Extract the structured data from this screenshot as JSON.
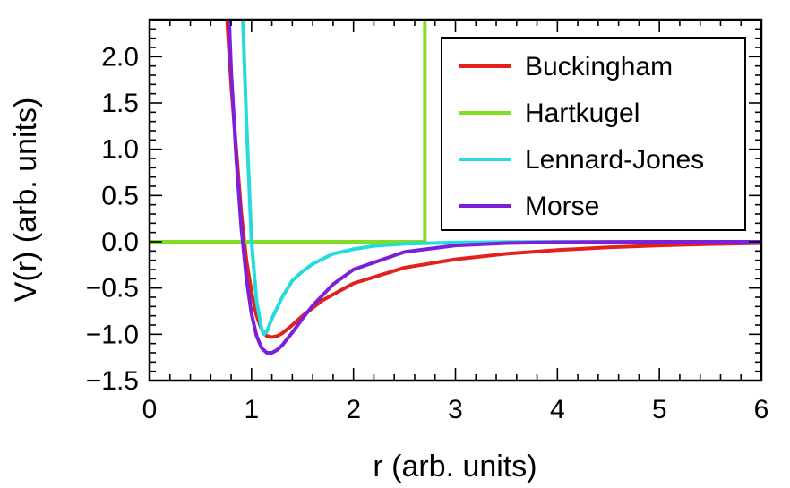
{
  "chart_data": {
    "type": "line",
    "title": "",
    "xlabel": "r (arb. units)",
    "ylabel": "V(r) (arb. units)",
    "xlim": [
      0,
      6
    ],
    "ylim": [
      -1.5,
      2.4
    ],
    "x_ticks": [
      "0",
      "1",
      "2",
      "3",
      "4",
      "5",
      "6"
    ],
    "x_tick_values": [
      0,
      1,
      2,
      3,
      4,
      5,
      6
    ],
    "y_ticks": [
      "−1.5",
      "−1.0",
      "−0.5",
      "0.0",
      "0.5",
      "1.0",
      "1.5",
      "2.0"
    ],
    "y_tick_values": [
      -1.5,
      -1.0,
      -0.5,
      0.0,
      0.5,
      1.0,
      1.5,
      2.0
    ],
    "grid": false,
    "legend_position": "top-right",
    "series": [
      {
        "name": "Buckingham",
        "color": "#e3211b",
        "x": [
          0.76,
          0.8,
          0.85,
          0.9,
          0.95,
          1.0,
          1.05,
          1.1,
          1.15,
          1.2,
          1.25,
          1.3,
          1.4,
          1.5,
          1.7,
          2.0,
          2.5,
          3.0,
          3.5,
          4.0,
          4.5,
          5.0,
          5.5,
          6.0
        ],
        "y": [
          2.4,
          1.7,
          1.0,
          0.3,
          -0.2,
          -0.55,
          -0.8,
          -0.95,
          -1.02,
          -1.03,
          -1.02,
          -0.99,
          -0.9,
          -0.8,
          -0.63,
          -0.45,
          -0.28,
          -0.19,
          -0.13,
          -0.09,
          -0.06,
          -0.04,
          -0.025,
          -0.015
        ]
      },
      {
        "name": "Hartkugel",
        "color": "#84dd25",
        "x": [
          0.0,
          2.7,
          2.7
        ],
        "y": [
          0.0,
          0.0,
          2.4
        ]
      },
      {
        "name": "Lennard-Jones",
        "color": "#25dbdb",
        "x": [
          0.915,
          0.95,
          1.0,
          1.05,
          1.1,
          1.122,
          1.15,
          1.2,
          1.3,
          1.4,
          1.5,
          1.6,
          1.8,
          2.0,
          2.2,
          2.5,
          3.0,
          3.5,
          4.0,
          5.0,
          6.0
        ],
        "y": [
          2.4,
          1.3,
          0.0,
          -0.65,
          -0.95,
          -1.0,
          -0.97,
          -0.83,
          -0.6,
          -0.42,
          -0.32,
          -0.24,
          -0.13,
          -0.08,
          -0.045,
          -0.022,
          -0.008,
          -0.003,
          -0.001,
          0.0,
          0.0
        ]
      },
      {
        "name": "Morse",
        "color": "#7d1fd8",
        "x": [
          0.78,
          0.8,
          0.85,
          0.9,
          0.95,
          1.0,
          1.05,
          1.1,
          1.15,
          1.2,
          1.25,
          1.3,
          1.4,
          1.5,
          1.6,
          1.8,
          2.0,
          2.5,
          3.0,
          3.5,
          4.0,
          4.5,
          5.0,
          6.0
        ],
        "y": [
          2.4,
          1.85,
          0.9,
          0.15,
          -0.4,
          -0.78,
          -1.02,
          -1.15,
          -1.2,
          -1.2,
          -1.17,
          -1.12,
          -0.98,
          -0.83,
          -0.69,
          -0.46,
          -0.3,
          -0.11,
          -0.04,
          -0.015,
          -0.005,
          -0.002,
          0.0,
          0.0
        ]
      }
    ]
  }
}
